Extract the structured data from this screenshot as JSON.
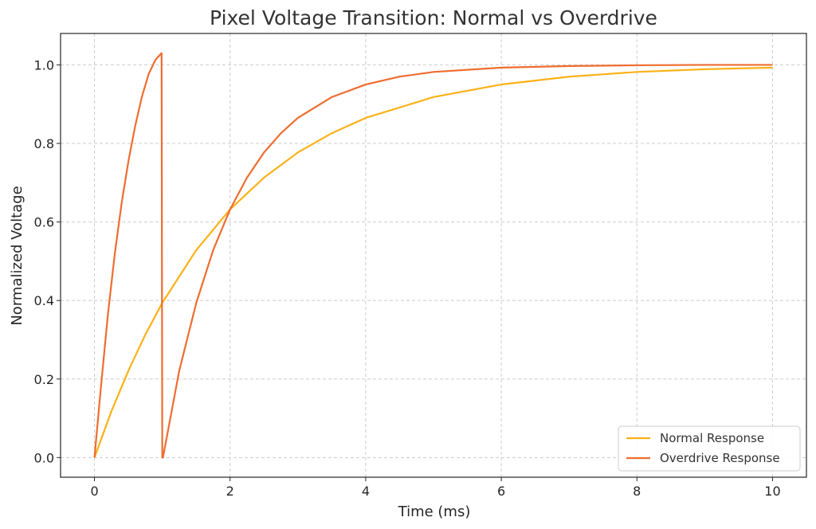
{
  "chart_data": {
    "type": "line",
    "title": "Pixel Voltage Transition: Normal vs Overdrive",
    "xlabel": "Time (ms)",
    "ylabel": "Normalized Voltage",
    "xlim": [
      -0.5,
      10.5
    ],
    "ylim": [
      -0.05,
      1.08
    ],
    "xticks": [
      0,
      2,
      4,
      6,
      8,
      10
    ],
    "yticks": [
      0.0,
      0.2,
      0.4,
      0.6,
      0.8,
      1.0
    ],
    "xtick_labels": [
      "0",
      "2",
      "4",
      "6",
      "8",
      "10"
    ],
    "ytick_labels": [
      "0.0",
      "0.2",
      "0.4",
      "0.6",
      "0.8",
      "1.0"
    ],
    "grid": true,
    "legend_position": "bottom-right",
    "series": [
      {
        "name": "Normal Response",
        "color": "#FBB117",
        "x": [
          0,
          0.25,
          0.5,
          0.75,
          1,
          1.5,
          2,
          2.5,
          3,
          3.5,
          4,
          5,
          6,
          7,
          8,
          9,
          10
        ],
        "y": [
          0,
          0.118,
          0.221,
          0.313,
          0.394,
          0.528,
          0.632,
          0.713,
          0.777,
          0.826,
          0.865,
          0.918,
          0.95,
          0.97,
          0.982,
          0.989,
          0.993
        ]
      },
      {
        "name": "Overdrive Response",
        "color": "#EE6D2F",
        "x": [
          0,
          0.1,
          0.2,
          0.3,
          0.4,
          0.5,
          0.6,
          0.7,
          0.8,
          0.9,
          0.99,
          1.0,
          1.01,
          1.25,
          1.5,
          1.75,
          2,
          2.25,
          2.5,
          2.75,
          3,
          3.5,
          4,
          4.5,
          5,
          6,
          7,
          8,
          9,
          10
        ],
        "y": [
          0,
          0.188,
          0.367,
          0.519,
          0.647,
          0.754,
          0.844,
          0.919,
          0.977,
          1.013,
          1.03,
          0.0,
          0.0,
          0.221,
          0.393,
          0.528,
          0.632,
          0.713,
          0.777,
          0.826,
          0.865,
          0.918,
          0.95,
          0.97,
          0.982,
          0.993,
          0.997,
          0.999,
          1.0,
          1.0
        ]
      }
    ]
  }
}
